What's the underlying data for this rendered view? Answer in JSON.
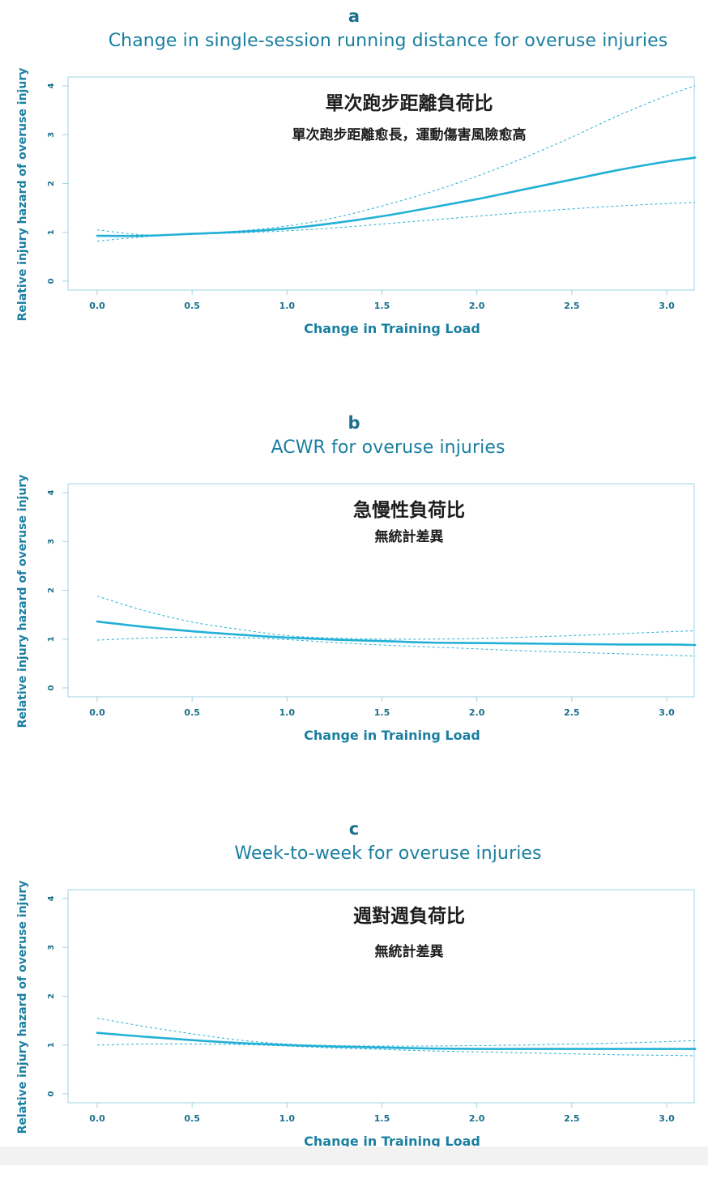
{
  "panels": [
    {
      "letter": "a",
      "title": "Change in single-session running distance for overuse injuries",
      "annotation_main": "單次跑步距離負荷比",
      "annotation_sub": "單次跑步距離愈長，運動傷害風險愈高"
    },
    {
      "letter": "b",
      "title": "ACWR for overuse injuries",
      "annotation_main": "急慢性負荷比",
      "annotation_sub": "無統計差異"
    },
    {
      "letter": "c",
      "title": "Week-to-week for overuse injuries",
      "annotation_main": "週對週負荷比",
      "annotation_sub": "無統計差異"
    }
  ],
  "colors": {
    "line": "#22b0d6",
    "axis": "#9fd3e3",
    "tick_text": "#1a6f8c",
    "title": "#1a7fa0"
  },
  "chart_data": [
    {
      "type": "line",
      "title": "Change in single-session running distance for overuse injuries",
      "xlabel": "Change in Training Load",
      "ylabel": "Relative injury hazard of overuse injury",
      "xlim": [
        0,
        3.15
      ],
      "ylim": [
        0,
        4.2
      ],
      "x_ticks": [
        0.0,
        0.5,
        1.0,
        1.5,
        2.0,
        2.5,
        3.0
      ],
      "x_tick_labels": [
        "0.0",
        "0.5",
        "1.0",
        "1.5",
        "2.0",
        "2.5",
        "3.0"
      ],
      "y_ticks": [
        0,
        1,
        2,
        3,
        4
      ],
      "y_tick_labels": [
        "0",
        "1",
        "2",
        "3",
        "4"
      ],
      "grid": false,
      "series": [
        {
          "role": "estimate",
          "style": "solid",
          "x": [
            0,
            0.25,
            0.5,
            0.75,
            1.0,
            1.25,
            1.5,
            1.75,
            2.0,
            2.25,
            2.5,
            2.75,
            3.0,
            3.15
          ],
          "y": [
            0.93,
            0.93,
            0.97,
            1.01,
            1.08,
            1.19,
            1.33,
            1.5,
            1.68,
            1.88,
            2.08,
            2.28,
            2.45,
            2.53
          ]
        },
        {
          "role": "upper",
          "style": "dashed",
          "x": [
            0,
            0.25,
            0.5,
            0.75,
            1.0,
            1.25,
            1.5,
            1.75,
            2.0,
            2.25,
            2.5,
            2.75,
            3.0,
            3.15
          ],
          "y": [
            1.05,
            0.95,
            0.98,
            1.03,
            1.13,
            1.3,
            1.54,
            1.82,
            2.15,
            2.53,
            2.95,
            3.4,
            3.8,
            4.0
          ]
        },
        {
          "role": "lower",
          "style": "dashed",
          "x": [
            0,
            0.25,
            0.5,
            0.75,
            1.0,
            1.25,
            1.5,
            1.75,
            2.0,
            2.25,
            2.5,
            2.75,
            3.0,
            3.15
          ],
          "y": [
            0.82,
            0.91,
            0.96,
            0.99,
            1.03,
            1.09,
            1.17,
            1.25,
            1.33,
            1.41,
            1.48,
            1.54,
            1.59,
            1.61
          ]
        }
      ]
    },
    {
      "type": "line",
      "title": "ACWR for overuse injuries",
      "xlabel": "Change in Training Load",
      "ylabel": "Relative injury hazard of overuse injury",
      "xlim": [
        0,
        3.15
      ],
      "ylim": [
        0,
        4.2
      ],
      "x_ticks": [
        0.0,
        0.5,
        1.0,
        1.5,
        2.0,
        2.5,
        3.0
      ],
      "x_tick_labels": [
        "0.0",
        "0.5",
        "1.0",
        "1.5",
        "2.0",
        "2.5",
        "3.0"
      ],
      "y_ticks": [
        0,
        1,
        2,
        3,
        4
      ],
      "y_tick_labels": [
        "0",
        "1",
        "2",
        "3",
        "4"
      ],
      "grid": false,
      "series": [
        {
          "role": "estimate",
          "style": "solid",
          "x": [
            0,
            0.25,
            0.5,
            0.75,
            1.0,
            1.25,
            1.5,
            1.75,
            2.0,
            2.25,
            2.5,
            2.75,
            3.0,
            3.15
          ],
          "y": [
            1.36,
            1.25,
            1.16,
            1.09,
            1.03,
            0.99,
            0.96,
            0.93,
            0.92,
            0.91,
            0.9,
            0.89,
            0.89,
            0.88
          ]
        },
        {
          "role": "upper",
          "style": "dashed",
          "x": [
            0,
            0.25,
            0.5,
            0.75,
            1.0,
            1.25,
            1.5,
            1.75,
            2.0,
            2.25,
            2.5,
            2.75,
            3.0,
            3.15
          ],
          "y": [
            1.88,
            1.58,
            1.35,
            1.2,
            1.07,
            1.02,
            1.0,
            1.0,
            1.01,
            1.04,
            1.07,
            1.11,
            1.15,
            1.17
          ]
        },
        {
          "role": "lower",
          "style": "dashed",
          "x": [
            0,
            0.25,
            0.5,
            0.75,
            1.0,
            1.25,
            1.5,
            1.75,
            2.0,
            2.25,
            2.5,
            2.75,
            3.0,
            3.15
          ],
          "y": [
            0.98,
            1.02,
            1.04,
            1.03,
            0.99,
            0.93,
            0.88,
            0.84,
            0.8,
            0.76,
            0.73,
            0.7,
            0.67,
            0.65
          ]
        }
      ]
    },
    {
      "type": "line",
      "title": "Week-to-week for overuse injuries",
      "xlabel": "Change in Training Load",
      "ylabel": "Relative injury hazard of overuse injury",
      "xlim": [
        0,
        3.15
      ],
      "ylim": [
        0,
        4.2
      ],
      "x_ticks": [
        0.0,
        0.5,
        1.0,
        1.5,
        2.0,
        2.5,
        3.0
      ],
      "x_tick_labels": [
        "0.0",
        "0.5",
        "1.0",
        "1.5",
        "2.0",
        "2.5",
        "3.0"
      ],
      "y_ticks": [
        0,
        1,
        2,
        3,
        4
      ],
      "y_tick_labels": [
        "0",
        "1",
        "2",
        "3",
        "4"
      ],
      "grid": false,
      "series": [
        {
          "role": "estimate",
          "style": "solid",
          "x": [
            0,
            0.25,
            0.5,
            0.75,
            1.0,
            1.25,
            1.5,
            1.75,
            2.0,
            2.25,
            2.5,
            2.75,
            3.0,
            3.15
          ],
          "y": [
            1.25,
            1.17,
            1.1,
            1.04,
            1.0,
            0.97,
            0.95,
            0.93,
            0.92,
            0.92,
            0.92,
            0.92,
            0.92,
            0.92
          ]
        },
        {
          "role": "upper",
          "style": "dashed",
          "x": [
            0,
            0.25,
            0.5,
            0.75,
            1.0,
            1.25,
            1.5,
            1.75,
            2.0,
            2.25,
            2.5,
            2.75,
            3.0,
            3.15
          ],
          "y": [
            1.55,
            1.38,
            1.23,
            1.1,
            1.02,
            0.99,
            0.98,
            0.98,
            0.99,
            1.0,
            1.02,
            1.04,
            1.07,
            1.09
          ]
        },
        {
          "role": "lower",
          "style": "dashed",
          "x": [
            0,
            0.25,
            0.5,
            0.75,
            1.0,
            1.25,
            1.5,
            1.75,
            2.0,
            2.25,
            2.5,
            2.75,
            3.0,
            3.15
          ],
          "y": [
            1.0,
            1.02,
            1.02,
            1.01,
            0.98,
            0.94,
            0.91,
            0.88,
            0.86,
            0.84,
            0.82,
            0.8,
            0.79,
            0.78
          ]
        }
      ]
    }
  ]
}
